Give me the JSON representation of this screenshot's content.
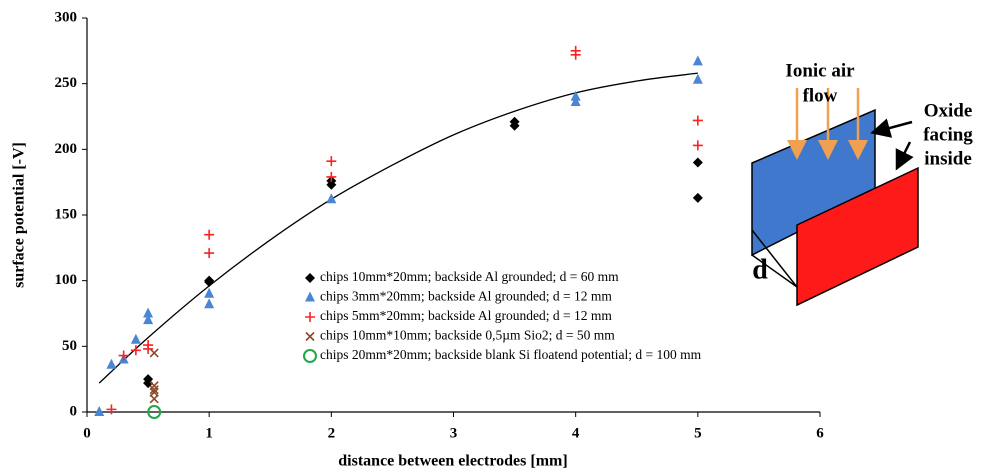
{
  "chart_data": {
    "type": "scatter",
    "x_label": "distance between electrodes [mm]",
    "y_label": "surface potential [-V]",
    "xlim": [
      0,
      6
    ],
    "xticks": [
      0,
      1,
      2,
      3,
      4,
      5,
      6
    ],
    "ylim": [
      0,
      300
    ],
    "yticks": [
      0,
      50,
      100,
      150,
      200,
      250,
      300
    ],
    "grid": false,
    "series": [
      {
        "name": "chips 10mm*20mm; backside Al grounded; d = 60 mm",
        "color": "#000000",
        "marker": "diamond",
        "x": [
          0.5,
          0.5,
          1,
          1,
          2,
          2,
          3.5,
          3.5,
          5,
          5
        ],
        "values": [
          25,
          22,
          100,
          99,
          176,
          173,
          221,
          218,
          190,
          163
        ]
      },
      {
        "name": "chips 3mm*20mm; backside Al grounded; d = 12 mm",
        "color": "#4a86d4",
        "marker": "triangle",
        "x": [
          0.1,
          0.2,
          0.3,
          0.4,
          0.5,
          0.5,
          1,
          1,
          2,
          4,
          4,
          5,
          5
        ],
        "values": [
          0,
          36,
          40,
          55,
          75,
          70,
          90,
          82,
          162,
          240,
          236,
          267,
          253
        ]
      },
      {
        "name": "chips 5mm*20mm; backside Al grounded; d = 12 mm",
        "color": "#ff2020",
        "marker": "plus",
        "x": [
          0.2,
          0.3,
          0.4,
          0.5,
          0.5,
          1,
          1,
          2,
          2,
          4,
          4,
          5,
          5
        ],
        "values": [
          2,
          43,
          47,
          51,
          48,
          135,
          121,
          191,
          179,
          275,
          272,
          222,
          203
        ]
      },
      {
        "name": "chips 10mm*10mm; backside 0,5µm Sio2; d = 50 mm",
        "color": "#8b4a2b",
        "marker": "cross",
        "x": [
          0.55,
          0.55,
          0.55,
          0.55,
          0.55
        ],
        "values": [
          45,
          20,
          17,
          15,
          10
        ]
      },
      {
        "name": "chips 20mm*20mm; backside blank Si floatend potential; d = 100 mm",
        "color": "#1fa84a",
        "marker": "circle",
        "x": [
          0.55
        ],
        "values": [
          0
        ]
      }
    ],
    "trendline": {
      "color": "#000000",
      "x": [
        0.1,
        0.5,
        1,
        1.5,
        2,
        2.5,
        3,
        3.5,
        4,
        4.5,
        5
      ],
      "values": [
        22,
        56.6,
        96,
        131,
        162,
        188,
        211,
        229,
        243,
        252,
        258
      ]
    }
  },
  "diagram": {
    "airflow_label": [
      "Ionic air",
      "flow"
    ],
    "oxide_label": [
      "Oxide",
      "facing",
      "inside"
    ],
    "gap_label": "d"
  }
}
